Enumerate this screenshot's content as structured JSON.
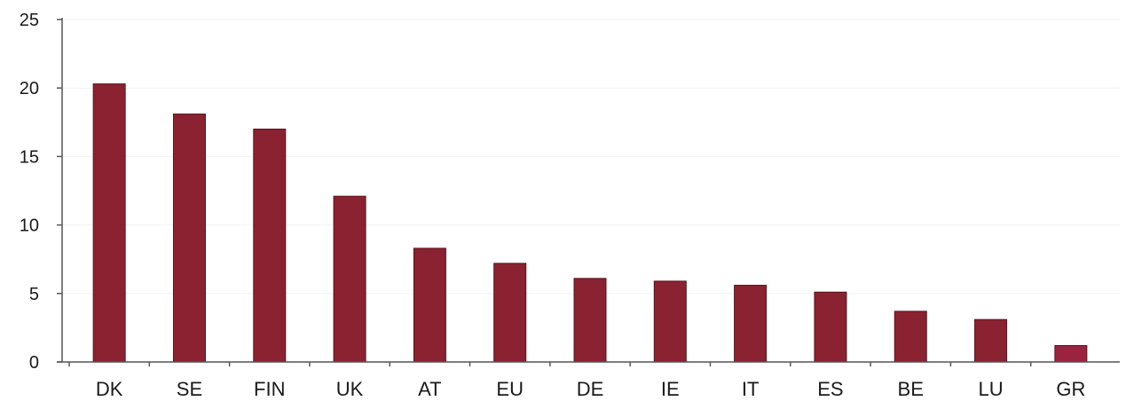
{
  "colors": {
    "bar": "#8b2232",
    "bar_last": "#9a2440",
    "bar_edge": "#5a141e",
    "axis": "#555555"
  },
  "chart_data": {
    "type": "bar",
    "title": "",
    "xlabel": "",
    "ylabel": "",
    "ylim": [
      0,
      25
    ],
    "yticks": [
      0,
      5,
      10,
      15,
      20,
      25
    ],
    "grid": false,
    "legend": "none",
    "categories": [
      "DK",
      "SE",
      "FIN",
      "UK",
      "AT",
      "EU",
      "DE",
      "IE",
      "IT",
      "ES",
      "BE",
      "LU",
      "GR"
    ],
    "values": [
      20.3,
      18.1,
      17.0,
      12.1,
      8.3,
      7.2,
      6.1,
      5.9,
      5.6,
      5.1,
      3.7,
      3.1,
      1.2
    ]
  }
}
